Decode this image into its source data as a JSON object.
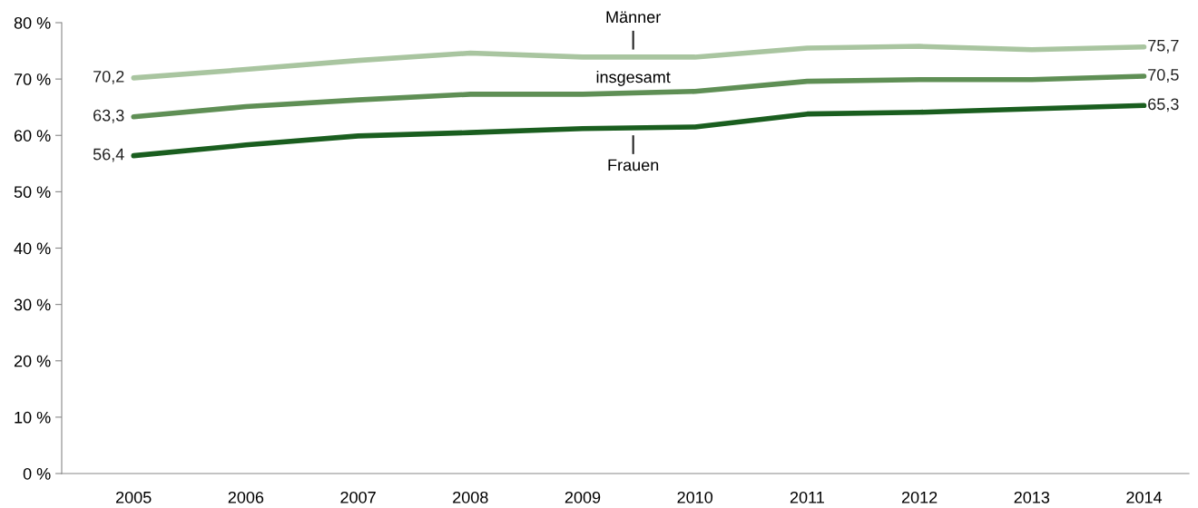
{
  "chart_data": {
    "type": "line",
    "categories": [
      "2005",
      "2006",
      "2007",
      "2008",
      "2009",
      "2010",
      "2011",
      "2012",
      "2013",
      "2014"
    ],
    "ylim": [
      0,
      80
    ],
    "yticks": [
      {
        "value": 0,
        "label": "0 %"
      },
      {
        "value": 10,
        "label": "10 %"
      },
      {
        "value": 20,
        "label": "20 %"
      },
      {
        "value": 30,
        "label": "30 %"
      },
      {
        "value": 40,
        "label": "40 %"
      },
      {
        "value": 50,
        "label": "50 %"
      },
      {
        "value": 60,
        "label": "60 %"
      },
      {
        "value": 70,
        "label": "70 %"
      },
      {
        "value": 80,
        "label": "80 %"
      }
    ],
    "grid": false,
    "legend": false,
    "marker": "none",
    "line_style": "solid",
    "series": [
      {
        "name": "Männer",
        "color": "#a9c5a0",
        "values": [
          70.2,
          71.7,
          73.3,
          74.6,
          73.9,
          73.9,
          75.5,
          75.8,
          75.2,
          75.7
        ],
        "value_labels": [
          "70,2",
          null,
          null,
          null,
          null,
          null,
          null,
          null,
          null,
          "75,7"
        ]
      },
      {
        "name": "insgesamt",
        "color": "#5f8f55",
        "values": [
          63.3,
          65.1,
          66.3,
          67.3,
          67.3,
          67.8,
          69.6,
          69.9,
          69.9,
          70.5
        ],
        "value_labels": [
          "63,3",
          null,
          null,
          null,
          null,
          null,
          null,
          null,
          null,
          "70,5"
        ]
      },
      {
        "name": "Frauen",
        "color": "#1a5e1f",
        "values": [
          56.4,
          58.3,
          59.9,
          60.5,
          61.2,
          61.5,
          63.8,
          64.1,
          64.7,
          65.3
        ],
        "value_labels": [
          "56,4",
          null,
          null,
          null,
          null,
          null,
          null,
          null,
          null,
          "65,3"
        ]
      }
    ]
  }
}
